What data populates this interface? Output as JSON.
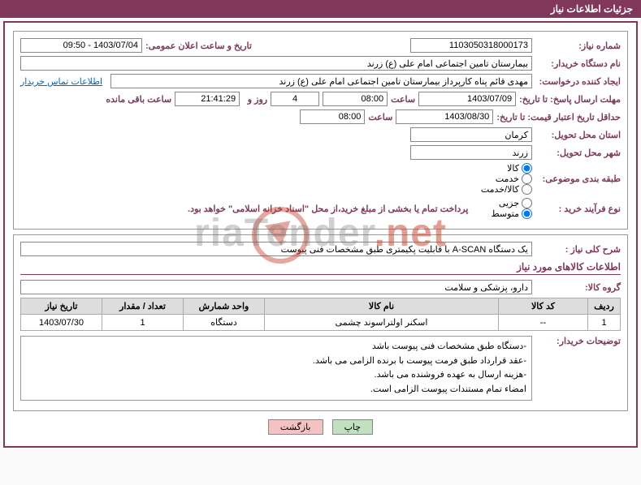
{
  "header": {
    "title": "جزئیات اطلاعات نیاز"
  },
  "info": {
    "need_no_label": "شماره نیاز:",
    "need_no": "1103050318000173",
    "announce_label": "تاریخ و ساعت اعلان عمومی:",
    "announce": "1403/07/04 - 09:50",
    "buyer_label": "نام دستگاه خریدار:",
    "buyer": "بیمارستان تامین اجتماعی امام علی (ع) زرند",
    "requester_label": "ایجاد کننده درخواست:",
    "requester": "مهدی  قائم پناه  کارپرداز بیمارستان تامین اجتماعی امام علی (ع) زرند",
    "contact_link": "اطلاعات تماس خریدار",
    "deadline_reply_label": "مهلت ارسال پاسخ: تا تاریخ:",
    "deadline_reply_date": "1403/07/09",
    "hour_label": "ساعت",
    "deadline_reply_time": "08:00",
    "days_value": "4",
    "days_and_label": "روز و",
    "countdown": "21:41:29",
    "remaining_label": "ساعت باقی مانده",
    "validity_label": "حداقل تاریخ اعتبار قیمت: تا تاریخ:",
    "validity_date": "1403/08/30",
    "validity_time": "08:00",
    "province_label": "استان محل تحویل:",
    "province": "کرمان",
    "city_label": "شهر محل تحویل:",
    "city": "زرند",
    "category_label": "طبقه بندی موضوعی:",
    "radios_category": [
      {
        "label": "کالا",
        "checked": true
      },
      {
        "label": "خدمت",
        "checked": false
      },
      {
        "label": "کالا/خدمت",
        "checked": false
      }
    ],
    "purchase_type_label": "نوع فرآیند خرید :",
    "radios_purchase": [
      {
        "label": "جزیی",
        "checked": false
      },
      {
        "label": "متوسط",
        "checked": true
      }
    ],
    "payment_note": "پرداخت تمام یا بخشی از مبلغ خرید،از محل \"اسناد خزانه اسلامی\" خواهد بود."
  },
  "summary": {
    "label": "شرح کلی نیاز :",
    "text": "یک دستگاه A-SCAN با قابلیت پکیمتری طبق مشخصات فنی پیوست"
  },
  "goods": {
    "section_title": "اطلاعات کالاهای مورد نیاز",
    "group_label": "گروه کالا:",
    "group": "دارو، پزشکی و سلامت",
    "columns": {
      "row": "ردیف",
      "code": "کد کالا",
      "name": "نام کالا",
      "unit": "واحد شمارش",
      "qty": "تعداد / مقدار",
      "need_date": "تاریخ نیاز"
    },
    "rows": [
      {
        "row": "1",
        "code": "--",
        "name": "اسکنر اولتراسوند چشمی",
        "unit": "دستگاه",
        "qty": "1",
        "need_date": "1403/07/30"
      }
    ]
  },
  "buyer_desc": {
    "label": "توضیحات خریدار:",
    "lines": [
      "-دستگاه طبق مشخصات فنی پیوست باشد",
      "-عقد قرارداد طبق فرمت پیوست با برنده الزامی می باشد.",
      "-هزینه ارسال به عهده فروشنده می باشد.",
      "امضاء تمام مستندات پیوست الزامی است."
    ]
  },
  "buttons": {
    "print": "چاپ",
    "back": "بازگشت"
  },
  "watermark": {
    "text_plain": "riaTender",
    "text_red": "net"
  },
  "styling": {
    "brand_color": "#80375a",
    "header_bg": "#80375a",
    "header_fg": "#ffffff",
    "border_color": "#999999",
    "table_header_bg": "#dddddd",
    "btn_print_bg": "#c0e0c0",
    "btn_back_bg": "#f4c2c2",
    "link_color": "#0066cc",
    "font_size_base": 11
  }
}
